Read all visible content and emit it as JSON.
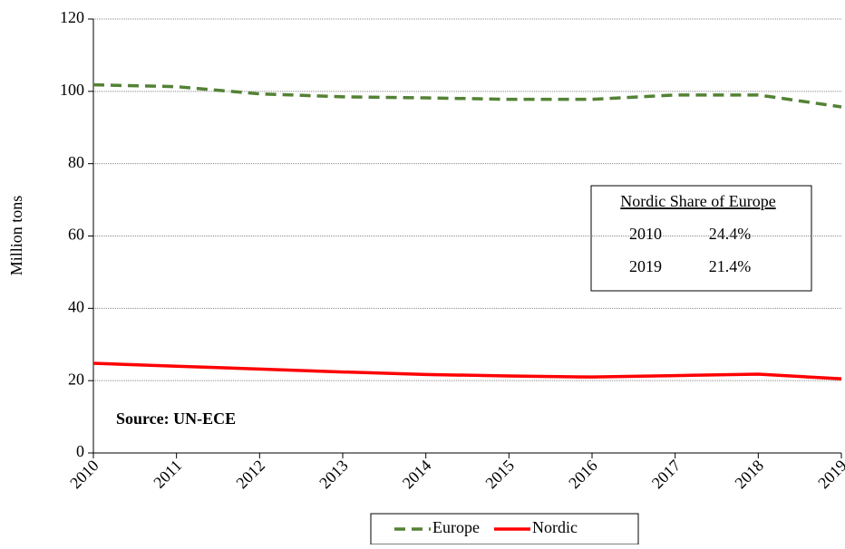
{
  "chart_data": {
    "type": "line",
    "y_label": "Million tons",
    "x": [
      2010,
      2011,
      2012,
      2013,
      2014,
      2015,
      2016,
      2017,
      2018,
      2019
    ],
    "xlim": [
      2010,
      2019
    ],
    "xticks": [
      2010,
      2011,
      2012,
      2013,
      2014,
      2015,
      2016,
      2017,
      2018,
      2019
    ],
    "ylim": [
      0,
      120
    ],
    "yticks": [
      0,
      20,
      40,
      60,
      80,
      100,
      120
    ],
    "grid": true,
    "legend": "bottom",
    "series": [
      {
        "name": "Europe",
        "color": "#548235",
        "dash": true,
        "values": [
          101.8,
          101.3,
          99.3,
          98.5,
          98.2,
          97.8,
          97.8,
          99.0,
          99.0,
          95.7
        ]
      },
      {
        "name": "Nordic",
        "color": "#ff0000",
        "dash": false,
        "values": [
          24.8,
          24.0,
          23.2,
          22.4,
          21.7,
          21.3,
          21.0,
          21.4,
          21.8,
          20.5
        ]
      }
    ],
    "annotations": [
      "Source: UN-ECE"
    ],
    "share_table": {
      "title": "Nordic Share of Europe",
      "rows": [
        [
          "2010",
          "24.4%"
        ],
        [
          "2019",
          "21.4%"
        ]
      ]
    }
  }
}
